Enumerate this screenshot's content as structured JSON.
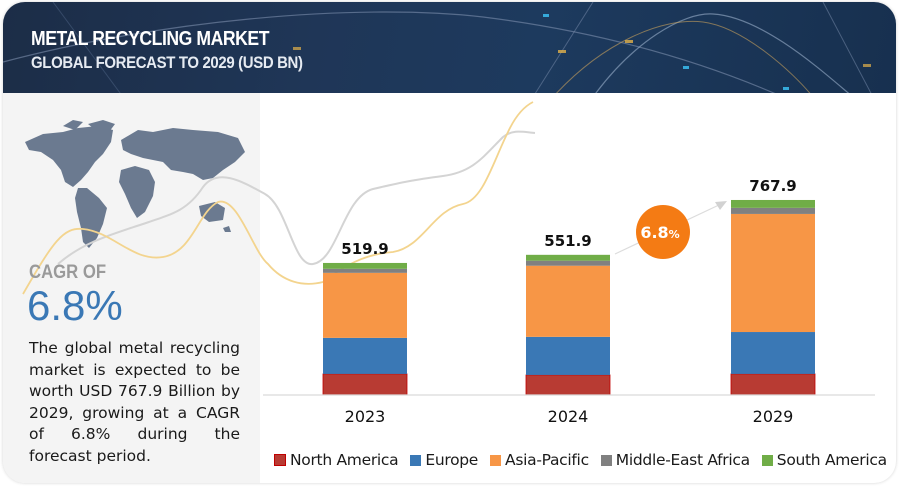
{
  "header": {
    "title": "METAL RECYCLING MARKET",
    "subtitle": "GLOBAL FORECAST TO 2029 (USD BN)"
  },
  "summary": {
    "cagr_label": "CAGR OF",
    "cagr_value": "6.8%",
    "description": "The global metal recycling market is expected to be worth USD 767.9 Billion by 2029, growing at a CAGR of 6.8% during the forecast period."
  },
  "cagr_bubble": {
    "value": "6.8",
    "unit": "%",
    "color": "#f47b14"
  },
  "chart_data": {
    "type": "bar",
    "stacked": true,
    "title": "Metal Recycling Market, Global Forecast to 2029 (USD BN)",
    "xlabel": "",
    "ylabel": "USD BN",
    "categories": [
      "2023",
      "2024",
      "2029"
    ],
    "totals": [
      519.9,
      551.9,
      767.9
    ],
    "total_labels": [
      "519.9",
      "551.9",
      "767.9"
    ],
    "series": [
      {
        "name": "North America",
        "color": "#b83b33",
        "values": [
          83,
          79,
          83
        ]
      },
      {
        "name": "Europe",
        "color": "#3a78b5",
        "values": [
          142,
          150,
          165
        ]
      },
      {
        "name": "Asia-Pacific",
        "color": "#f79646",
        "values": [
          256,
          280,
          465
        ]
      },
      {
        "name": "Middle-East Africa",
        "color": "#808080",
        "values": [
          16,
          20,
          24
        ]
      },
      {
        "name": "South America",
        "color": "#70ad47",
        "values": [
          23,
          23,
          31
        ]
      }
    ],
    "ylim": [
      0,
      800
    ],
    "grid": false,
    "legend_position": "bottom",
    "annotation": "6.8% CAGR arrow from 2024 to 2029"
  }
}
